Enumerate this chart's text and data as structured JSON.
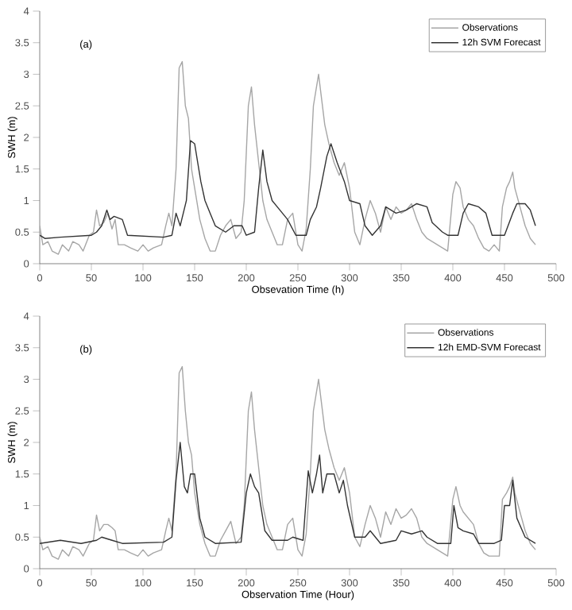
{
  "chart_data": [
    {
      "type": "line",
      "annotations": [
        "(a)"
      ],
      "xlabel": "Obsevation Time (h)",
      "ylabel": "SWH (m)",
      "xlim": [
        0,
        500
      ],
      "xticks": [
        0,
        50,
        100,
        150,
        200,
        250,
        300,
        350,
        400,
        450,
        500
      ],
      "ylim": [
        0,
        4
      ],
      "yticks": [
        0,
        0.5,
        1,
        1.5,
        2,
        2.5,
        3,
        3.5,
        4
      ],
      "legend": "top right",
      "series": [
        {
          "name": "Observations",
          "color": "#a6a6a6",
          "x": [
            0,
            3,
            8,
            12,
            18,
            22,
            28,
            32,
            38,
            42,
            48,
            52,
            55,
            58,
            62,
            66,
            70,
            73,
            76,
            82,
            88,
            95,
            100,
            105,
            110,
            118,
            122,
            125,
            128,
            132,
            135,
            138,
            141,
            144,
            147,
            150,
            155,
            160,
            165,
            170,
            175,
            180,
            185,
            190,
            195,
            198,
            202,
            205,
            208,
            212,
            216,
            220,
            225,
            230,
            235,
            240,
            245,
            250,
            254,
            258,
            262,
            265,
            268,
            270,
            273,
            276,
            280,
            285,
            290,
            295,
            300,
            305,
            310,
            315,
            320,
            325,
            330,
            335,
            340,
            345,
            350,
            355,
            360,
            365,
            370,
            375,
            380,
            385,
            390,
            395,
            400,
            403,
            407,
            410,
            415,
            420,
            425,
            430,
            435,
            440,
            445,
            448,
            452,
            455,
            458,
            460,
            465,
            470,
            475,
            480
          ],
          "values": [
            0.6,
            0.3,
            0.35,
            0.2,
            0.15,
            0.3,
            0.2,
            0.35,
            0.3,
            0.2,
            0.45,
            0.5,
            0.85,
            0.6,
            0.65,
            0.8,
            0.55,
            0.7,
            0.3,
            0.3,
            0.25,
            0.2,
            0.3,
            0.2,
            0.25,
            0.3,
            0.6,
            0.8,
            0.6,
            1.5,
            3.1,
            3.2,
            2.5,
            2.3,
            1.5,
            1.2,
            0.7,
            0.4,
            0.2,
            0.2,
            0.45,
            0.6,
            0.7,
            0.4,
            0.5,
            1.0,
            2.5,
            2.8,
            2.2,
            1.6,
            1.0,
            0.7,
            0.5,
            0.3,
            0.3,
            0.7,
            0.8,
            0.3,
            0.2,
            0.55,
            1.5,
            2.5,
            2.8,
            3.0,
            2.6,
            2.2,
            1.9,
            1.6,
            1.4,
            1.6,
            1.2,
            0.5,
            0.3,
            0.7,
            1.0,
            0.8,
            0.5,
            0.9,
            0.7,
            0.9,
            0.8,
            0.85,
            0.95,
            0.7,
            0.5,
            0.4,
            0.35,
            0.3,
            0.25,
            0.2,
            1.1,
            1.3,
            1.2,
            0.9,
            0.7,
            0.6,
            0.4,
            0.25,
            0.2,
            0.3,
            0.2,
            0.9,
            1.2,
            1.3,
            1.45,
            1.2,
            0.9,
            0.6,
            0.4,
            0.3
          ]
        },
        {
          "name": "12h SVM Forecast",
          "color": "#333333",
          "x": [
            0,
            5,
            20,
            50,
            55,
            60,
            65,
            68,
            72,
            80,
            85,
            120,
            128,
            132,
            136,
            142,
            146,
            150,
            153,
            156,
            160,
            165,
            170,
            180,
            188,
            196,
            200,
            208,
            212,
            216,
            220,
            225,
            235,
            240,
            248,
            258,
            262,
            268,
            272,
            278,
            282,
            288,
            295,
            300,
            310,
            315,
            322,
            330,
            335,
            345,
            355,
            365,
            375,
            380,
            390,
            395,
            405,
            410,
            415,
            425,
            432,
            438,
            450,
            458,
            462,
            470,
            475,
            480
          ],
          "values": [
            0.45,
            0.4,
            0.42,
            0.45,
            0.5,
            0.6,
            0.85,
            0.7,
            0.75,
            0.7,
            0.45,
            0.42,
            0.45,
            0.8,
            0.6,
            1.0,
            1.95,
            1.9,
            1.6,
            1.3,
            1.0,
            0.8,
            0.6,
            0.5,
            0.6,
            0.6,
            0.45,
            0.5,
            1.2,
            1.8,
            1.3,
            1.0,
            0.8,
            0.7,
            0.45,
            0.45,
            0.7,
            0.9,
            1.2,
            1.7,
            1.9,
            1.6,
            1.3,
            1.0,
            0.95,
            0.6,
            0.45,
            0.6,
            0.9,
            0.8,
            0.85,
            0.95,
            0.9,
            0.65,
            0.5,
            0.45,
            0.45,
            0.8,
            0.95,
            0.9,
            0.8,
            0.45,
            0.45,
            0.8,
            0.95,
            0.95,
            0.85,
            0.6
          ]
        }
      ]
    },
    {
      "type": "line",
      "annotations": [
        "(b)"
      ],
      "xlabel": "Observation Time (Hour)",
      "ylabel": "SWH (m)",
      "xlim": [
        0,
        500
      ],
      "xticks": [
        0,
        50,
        100,
        150,
        200,
        250,
        300,
        350,
        400,
        450,
        500
      ],
      "ylim": [
        0,
        4
      ],
      "yticks": [
        0,
        0.5,
        1,
        1.5,
        2,
        2.5,
        3,
        3.5,
        4
      ],
      "legend": "top right",
      "series": [
        {
          "name": "Observations",
          "color": "#a6a6a6",
          "x": [
            0,
            3,
            8,
            12,
            18,
            22,
            28,
            32,
            38,
            42,
            48,
            52,
            55,
            58,
            62,
            66,
            70,
            73,
            76,
            82,
            88,
            95,
            100,
            105,
            110,
            118,
            122,
            125,
            128,
            132,
            135,
            138,
            141,
            144,
            147,
            150,
            155,
            160,
            165,
            170,
            175,
            180,
            185,
            190,
            195,
            198,
            202,
            205,
            208,
            212,
            216,
            220,
            225,
            230,
            235,
            240,
            245,
            250,
            254,
            258,
            262,
            265,
            268,
            270,
            273,
            276,
            280,
            285,
            290,
            295,
            300,
            305,
            310,
            315,
            320,
            325,
            330,
            335,
            340,
            345,
            350,
            355,
            360,
            365,
            370,
            375,
            380,
            385,
            390,
            395,
            400,
            403,
            407,
            410,
            415,
            420,
            425,
            430,
            435,
            440,
            445,
            448,
            452,
            455,
            458,
            460,
            465,
            470,
            475,
            480
          ],
          "values": [
            0.5,
            0.3,
            0.35,
            0.2,
            0.15,
            0.3,
            0.2,
            0.35,
            0.3,
            0.2,
            0.4,
            0.45,
            0.85,
            0.6,
            0.7,
            0.7,
            0.65,
            0.6,
            0.3,
            0.3,
            0.25,
            0.2,
            0.3,
            0.2,
            0.25,
            0.3,
            0.6,
            0.8,
            0.6,
            1.5,
            3.1,
            3.2,
            2.5,
            2.0,
            1.8,
            1.2,
            0.7,
            0.4,
            0.2,
            0.2,
            0.45,
            0.6,
            0.75,
            0.4,
            0.5,
            1.0,
            2.5,
            2.8,
            2.2,
            1.6,
            1.0,
            0.7,
            0.5,
            0.3,
            0.3,
            0.7,
            0.8,
            0.3,
            0.2,
            0.55,
            1.5,
            2.5,
            2.8,
            3.0,
            2.6,
            2.2,
            1.9,
            1.6,
            1.4,
            1.6,
            1.2,
            0.5,
            0.35,
            0.7,
            1.0,
            0.8,
            0.5,
            0.9,
            0.7,
            0.95,
            0.8,
            0.85,
            0.95,
            0.8,
            0.5,
            0.4,
            0.35,
            0.3,
            0.25,
            0.2,
            1.1,
            1.3,
            1.0,
            0.9,
            0.8,
            0.7,
            0.4,
            0.25,
            0.2,
            0.2,
            0.2,
            1.1,
            1.2,
            1.3,
            1.45,
            1.2,
            0.9,
            0.6,
            0.4,
            0.3
          ]
        },
        {
          "name": "12h EMD-SVM Forecast",
          "color": "#333333",
          "x": [
            0,
            20,
            40,
            55,
            60,
            70,
            80,
            120,
            128,
            132,
            136,
            140,
            143,
            146,
            150,
            155,
            160,
            170,
            195,
            200,
            204,
            208,
            212,
            218,
            225,
            240,
            245,
            255,
            260,
            264,
            268,
            271,
            274,
            278,
            285,
            290,
            294,
            298,
            305,
            315,
            320,
            325,
            330,
            345,
            350,
            360,
            370,
            375,
            385,
            398,
            401,
            405,
            410,
            420,
            425,
            440,
            447,
            450,
            455,
            458,
            462,
            470,
            480
          ],
          "values": [
            0.4,
            0.45,
            0.4,
            0.45,
            0.5,
            0.45,
            0.4,
            0.42,
            0.5,
            1.4,
            2.0,
            1.3,
            1.2,
            1.5,
            1.5,
            0.8,
            0.5,
            0.4,
            0.42,
            1.2,
            1.5,
            1.3,
            1.2,
            0.6,
            0.45,
            0.45,
            0.5,
            0.45,
            1.55,
            1.2,
            1.5,
            1.8,
            1.2,
            1.5,
            1.5,
            1.2,
            1.4,
            1.0,
            0.5,
            0.5,
            0.6,
            0.5,
            0.4,
            0.45,
            0.6,
            0.55,
            0.6,
            0.5,
            0.4,
            0.4,
            1.0,
            0.65,
            0.6,
            0.55,
            0.4,
            0.4,
            0.45,
            1.0,
            1.0,
            1.4,
            0.8,
            0.5,
            0.4
          ]
        }
      ]
    }
  ]
}
